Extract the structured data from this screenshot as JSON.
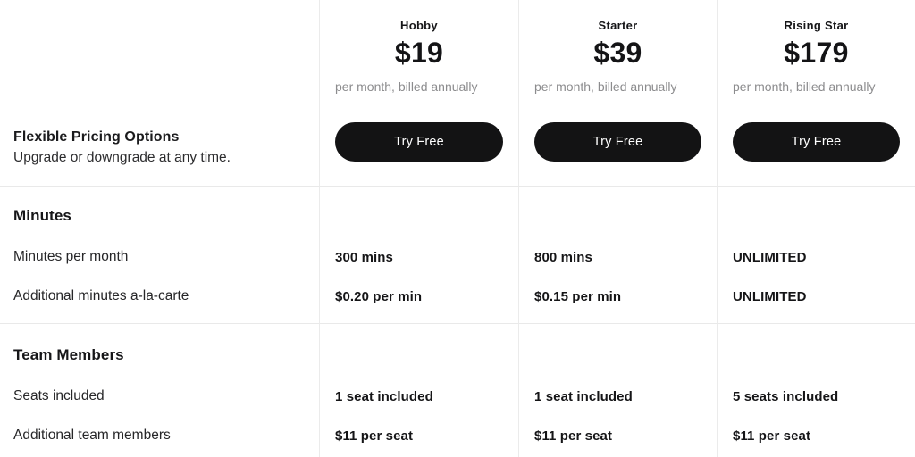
{
  "theme": {
    "button_bg": "#131314",
    "text_primary": "#1d1d1f",
    "text_muted": "#8c8c8e",
    "divider": "#e9e9e9"
  },
  "intro": {
    "title": "Flexible Pricing Options",
    "subtitle": "Upgrade or downgrade at any time."
  },
  "plans": [
    {
      "name": "Hobby",
      "price": "$19",
      "billing_note": "per month, billed annually",
      "cta": "Try Free"
    },
    {
      "name": "Starter",
      "price": "$39",
      "billing_note": "per month, billed annually",
      "cta": "Try Free"
    },
    {
      "name": "Rising Star",
      "price": "$179",
      "billing_note": "per month, billed annually",
      "cta": "Try Free"
    }
  ],
  "sections": [
    {
      "title": "Minutes",
      "rows": [
        {
          "label": "Minutes per month",
          "values": [
            "300 mins",
            "800 mins",
            "UNLIMITED"
          ]
        },
        {
          "label": "Additional minutes a-la-carte",
          "values": [
            "$0.20 per min",
            "$0.15 per min",
            "UNLIMITED"
          ]
        }
      ]
    },
    {
      "title": "Team Members",
      "rows": [
        {
          "label": "Seats included",
          "values": [
            "1 seat included",
            "1 seat included",
            "5 seats included"
          ]
        },
        {
          "label": "Additional team members",
          "values": [
            "$11 per seat",
            "$11 per seat",
            "$11 per seat"
          ]
        }
      ]
    }
  ]
}
